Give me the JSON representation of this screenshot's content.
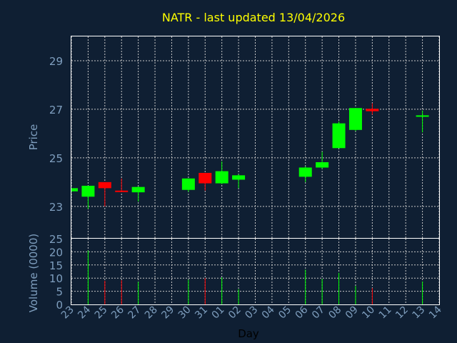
{
  "chart_data": {
    "type": "candlestick",
    "title": "NATR - last updated 13/04/2026",
    "xlabel": "Day",
    "x_ticks": [
      "23",
      "24",
      "25",
      "26",
      "27",
      "28",
      "29",
      "30",
      "31",
      "01",
      "02",
      "03",
      "04",
      "05",
      "06",
      "07",
      "08",
      "09",
      "10",
      "11",
      "12",
      "13",
      "14"
    ],
    "price_panel": {
      "ylabel": "Price",
      "ylim": [
        21.7,
        30.0
      ],
      "yticks": [
        23,
        25,
        27,
        29
      ],
      "candles": [
        {
          "x": "23",
          "open": 23.62,
          "high": 23.75,
          "low": 23.6,
          "close": 23.75
        },
        {
          "x": "24",
          "open": 23.4,
          "high": 23.85,
          "low": 22.9,
          "close": 23.85
        },
        {
          "x": "25",
          "open": 24.0,
          "high": 24.0,
          "low": 23.0,
          "close": 23.75
        },
        {
          "x": "26",
          "open": 23.65,
          "high": 24.15,
          "low": 23.6,
          "close": 23.62
        },
        {
          "x": "27",
          "open": 23.58,
          "high": 23.82,
          "low": 23.2,
          "close": 23.8
        },
        {
          "x": "30",
          "open": 23.68,
          "high": 24.15,
          "low": 23.6,
          "close": 24.15
        },
        {
          "x": "31",
          "open": 24.38,
          "high": 24.38,
          "low": 23.65,
          "close": 23.95
        },
        {
          "x": "01",
          "open": 23.95,
          "high": 24.85,
          "low": 23.92,
          "close": 24.45
        },
        {
          "x": "02",
          "open": 24.1,
          "high": 24.32,
          "low": 23.75,
          "close": 24.28
        },
        {
          "x": "06",
          "open": 24.22,
          "high": 24.65,
          "low": 24.0,
          "close": 24.6
        },
        {
          "x": "07",
          "open": 24.6,
          "high": 25.25,
          "low": 24.55,
          "close": 24.82
        },
        {
          "x": "08",
          "open": 25.4,
          "high": 26.5,
          "low": 25.4,
          "close": 26.42
        },
        {
          "x": "09",
          "open": 26.15,
          "high": 27.05,
          "low": 26.1,
          "close": 27.05
        },
        {
          "x": "10",
          "open": 27.02,
          "high": 27.25,
          "low": 26.78,
          "close": 26.92
        },
        {
          "x": "13",
          "open": 26.72,
          "high": 26.95,
          "low": 26.05,
          "close": 26.75
        }
      ]
    },
    "volume_panel": {
      "ylabel": "Volume (0000)",
      "ylim": [
        0,
        25
      ],
      "yticks": [
        0,
        5,
        10,
        15,
        20,
        25
      ],
      "bars": [
        {
          "x": "24",
          "value": 20.5,
          "direction": "up"
        },
        {
          "x": "25",
          "value": 9.0,
          "direction": "down"
        },
        {
          "x": "26",
          "value": 9.2,
          "direction": "down"
        },
        {
          "x": "27",
          "value": 8.6,
          "direction": "up"
        },
        {
          "x": "30",
          "value": 9.4,
          "direction": "up"
        },
        {
          "x": "31",
          "value": 10.0,
          "direction": "down"
        },
        {
          "x": "01",
          "value": 10.3,
          "direction": "up"
        },
        {
          "x": "02",
          "value": 5.8,
          "direction": "up"
        },
        {
          "x": "06",
          "value": 13.2,
          "direction": "up"
        },
        {
          "x": "07",
          "value": 9.7,
          "direction": "up"
        },
        {
          "x": "08",
          "value": 12.0,
          "direction": "up"
        },
        {
          "x": "09",
          "value": 7.0,
          "direction": "up"
        },
        {
          "x": "10",
          "value": 6.2,
          "direction": "down"
        },
        {
          "x": "13",
          "value": 8.7,
          "direction": "up"
        }
      ]
    },
    "grid": true,
    "colors": {
      "background": "#0f1f33",
      "title": "#ffff00",
      "axis_text": "#7f9fbf",
      "up": "#00ff00",
      "down": "#ff0000",
      "grid": "#c8c8c8",
      "frame": "#ffffff"
    }
  }
}
